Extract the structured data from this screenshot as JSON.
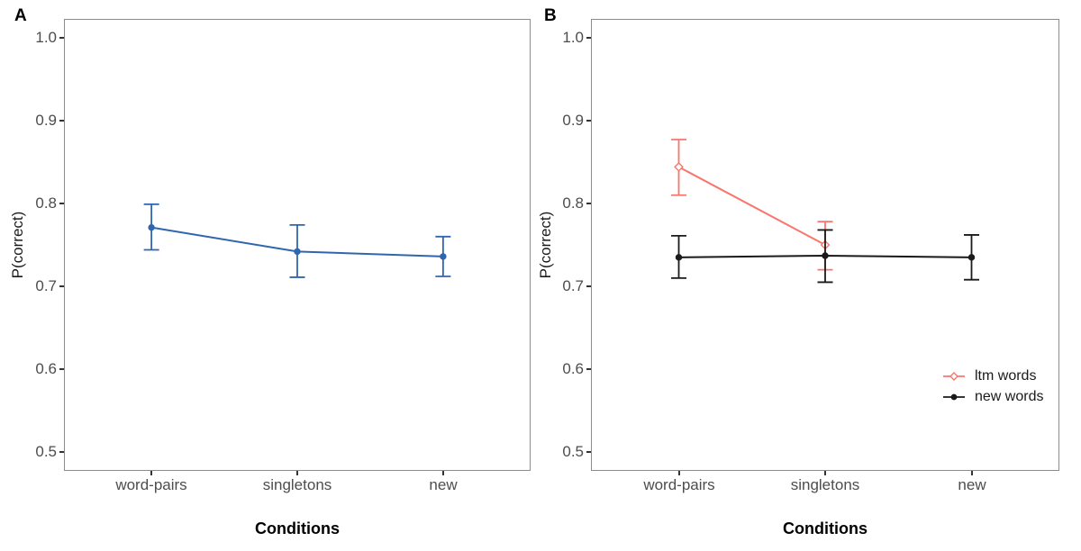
{
  "figure_title": "",
  "chart_data": [
    {
      "panel": "A",
      "type": "line",
      "title": "",
      "xlabel": "Conditions",
      "ylabel": "P(correct)",
      "categories": [
        "word-pairs",
        "singletons",
        "new"
      ],
      "x_positions": [
        0.1875,
        0.5,
        0.8125
      ],
      "y_ticks": [
        1.0,
        0.9,
        0.8,
        0.7,
        0.6,
        0.5
      ],
      "y_tick_labels": [
        "1.0",
        "0.9",
        "0.8",
        "0.7",
        "0.6",
        "0.5"
      ],
      "y_domain": [
        0.4775,
        1.0225
      ],
      "grid": "off",
      "legend": "none",
      "series": [
        {
          "name": "",
          "color": "#3065AF",
          "marker": "circle-filled",
          "values": [
            0.771,
            0.742,
            0.736
          ],
          "ci_low": [
            0.744,
            0.711,
            0.712
          ],
          "ci_high": [
            0.799,
            0.774,
            0.76
          ]
        }
      ]
    },
    {
      "panel": "B",
      "type": "line",
      "title": "",
      "xlabel": "Conditions",
      "ylabel": "P(correct)",
      "categories": [
        "word-pairs",
        "singletons",
        "new"
      ],
      "x_positions": [
        0.1875,
        0.5,
        0.8125
      ],
      "y_ticks": [
        1.0,
        0.9,
        0.8,
        0.7,
        0.6,
        0.5
      ],
      "y_tick_labels": [
        "1.0",
        "0.9",
        "0.8",
        "0.7",
        "0.6",
        "0.5"
      ],
      "y_domain": [
        0.4775,
        1.0225
      ],
      "grid": "off",
      "legend": "inside-right",
      "series": [
        {
          "name": "ltm words",
          "color": "#F8766D",
          "marker": "diamond-open",
          "values": [
            0.844,
            0.75,
            null
          ],
          "ci_low": [
            0.81,
            0.72,
            null
          ],
          "ci_high": [
            0.877,
            0.778,
            null
          ]
        },
        {
          "name": "new words",
          "color": "#1A1A1A",
          "marker": "circle-filled",
          "values": [
            0.735,
            0.737,
            0.735
          ],
          "ci_low": [
            0.71,
            0.705,
            0.708
          ],
          "ci_high": [
            0.761,
            0.768,
            0.762
          ]
        }
      ]
    }
  ],
  "style": {
    "panel_border_color": "#8C8C8C",
    "tick_text_color": "#4D4D4D",
    "tick_mark_color": "#333333"
  }
}
